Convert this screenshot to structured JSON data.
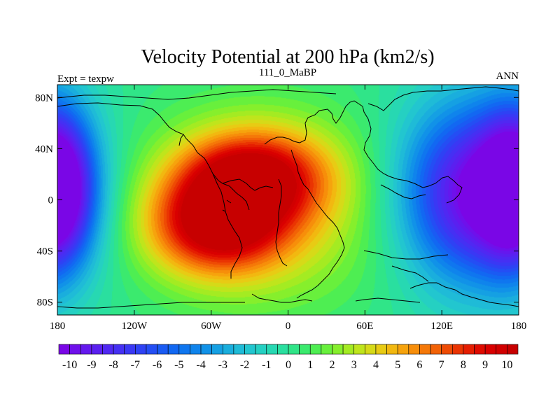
{
  "chart_data": {
    "type": "heatmap",
    "title": "Velocity Potential at 200 hPa (km2/s)",
    "subtitle_left": "Expt = texpw",
    "subtitle_center": "111_0_MaBP",
    "subtitle_right": "ANN",
    "xlim": [
      -180,
      180
    ],
    "ylim": [
      -90,
      90
    ],
    "x_ticks": [
      {
        "value": -180,
        "label": "180"
      },
      {
        "value": -120,
        "label": "120W"
      },
      {
        "value": -60,
        "label": "60W"
      },
      {
        "value": 0,
        "label": "0"
      },
      {
        "value": 60,
        "label": "60E"
      },
      {
        "value": 120,
        "label": "120E"
      },
      {
        "value": 180,
        "label": "180"
      }
    ],
    "y_ticks": [
      {
        "value": 80,
        "label": "80N"
      },
      {
        "value": 40,
        "label": "40N"
      },
      {
        "value": 0,
        "label": "0"
      },
      {
        "value": -40,
        "label": "40S"
      },
      {
        "value": -80,
        "label": "80S"
      }
    ],
    "colorbar": {
      "min": -10.5,
      "max": 10.5,
      "step": 0.5,
      "labels": [
        {
          "value": -10,
          "label": "-10"
        },
        {
          "value": -9,
          "label": "-9"
        },
        {
          "value": -8,
          "label": "-8"
        },
        {
          "value": -7,
          "label": "-7"
        },
        {
          "value": -6,
          "label": "-6"
        },
        {
          "value": -5,
          "label": "-5"
        },
        {
          "value": -4,
          "label": "-4"
        },
        {
          "value": -3,
          "label": "-3"
        },
        {
          "value": -2,
          "label": "-2"
        },
        {
          "value": -1,
          "label": "-1"
        },
        {
          "value": 0,
          "label": "0"
        },
        {
          "value": 1,
          "label": "1"
        },
        {
          "value": 2,
          "label": "2"
        },
        {
          "value": 3,
          "label": "3"
        },
        {
          "value": 4,
          "label": "4"
        },
        {
          "value": 5,
          "label": "5"
        },
        {
          "value": 6,
          "label": "6"
        },
        {
          "value": 7,
          "label": "7"
        },
        {
          "value": 8,
          "label": "8"
        },
        {
          "value": 9,
          "label": "9"
        },
        {
          "value": 10,
          "label": "10"
        }
      ],
      "colors": [
        "#7a06e6",
        "#6f10eb",
        "#6418ee",
        "#5a20f0",
        "#5028f2",
        "#4530f3",
        "#3a38f4",
        "#2e42f4",
        "#244ef4",
        "#1a5bf3",
        "#1268f2",
        "#0f76ef",
        "#0f84ec",
        "#1192e8",
        "#15a0e3",
        "#1aaedd",
        "#1fbbd7",
        "#22c6cf",
        "#25d0c2",
        "#27d8b2",
        "#2adf9f",
        "#30e588",
        "#3bea6e",
        "#4eee52",
        "#68f03c",
        "#86ef2c",
        "#a4eb22",
        "#bfe51c",
        "#d6da18",
        "#e8cb14",
        "#f2b810",
        "#f6a30d",
        "#f78e0a",
        "#f57808",
        "#f26206",
        "#ee4b04",
        "#ea3402",
        "#e51e01",
        "#df0b00",
        "#d90000",
        "#d10000",
        "#c70000"
      ]
    },
    "centers": [
      {
        "lon": -180,
        "lat": 10,
        "amp": -9.5,
        "slon": 20,
        "slat": 42
      },
      {
        "lon": 145,
        "lat": 5,
        "amp": -10.5,
        "slon": 40,
        "slat": 48
      },
      {
        "lon": -28,
        "lat": 18,
        "amp": 8.4,
        "slon": 38,
        "slat": 24
      },
      {
        "lon": -55,
        "lat": -20,
        "amp": 8.6,
        "slon": 36,
        "slat": 26
      },
      {
        "lon": -20,
        "lat": -5,
        "amp": 4.2,
        "slon": 70,
        "slat": 55
      }
    ],
    "values_note": ""
  }
}
